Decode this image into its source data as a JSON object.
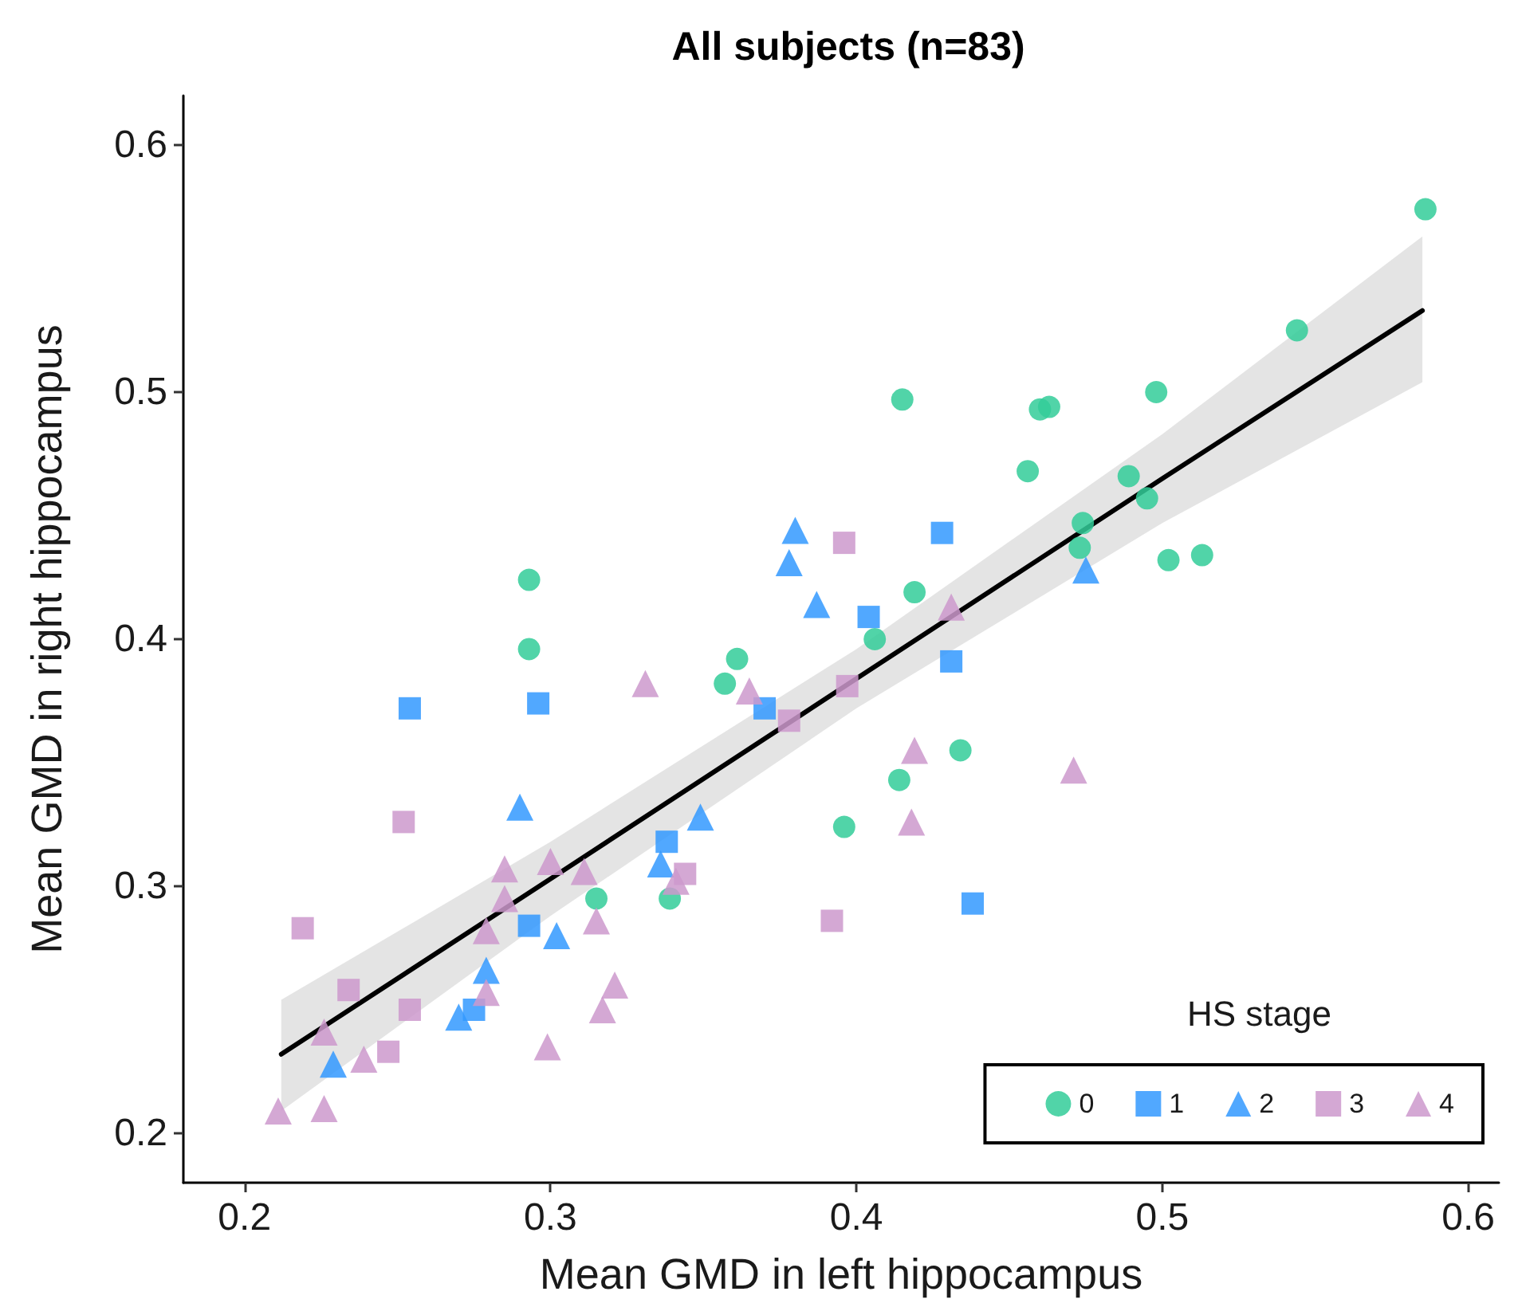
{
  "chart_data": {
    "type": "scatter",
    "title": "All subjects (n=83)",
    "xlabel": "Mean GMD in left hippocampus",
    "ylabel": "Mean GMD in right hippocampus",
    "legend_title": "HS stage",
    "legend": "bottom right",
    "grid": false,
    "xlim": [
      0.18,
      0.61
    ],
    "ylim": [
      0.18,
      0.62
    ],
    "xticks": [
      0.2,
      0.3,
      0.4,
      0.5,
      0.6
    ],
    "yticks": [
      0.2,
      0.3,
      0.4,
      0.5,
      0.6
    ],
    "series": [
      {
        "name": "0",
        "color": "#33cc99",
        "marker": "circle",
        "x": [
          0.293,
          0.293,
          0.315,
          0.339,
          0.357,
          0.361,
          0.406,
          0.419,
          0.396,
          0.414,
          0.434,
          0.415,
          0.46,
          0.463,
          0.498,
          0.544,
          0.586,
          0.456,
          0.489,
          0.495,
          0.474,
          0.473,
          0.502,
          0.513
        ],
        "values": [
          0.424,
          0.396,
          0.295,
          0.295,
          0.382,
          0.392,
          0.4,
          0.419,
          0.324,
          0.343,
          0.355,
          0.497,
          0.493,
          0.494,
          0.5,
          0.525,
          0.574,
          0.468,
          0.466,
          0.457,
          0.447,
          0.437,
          0.432,
          0.434
        ]
      },
      {
        "name": "1",
        "color": "#3399ff",
        "marker": "square",
        "x": [
          0.254,
          0.296,
          0.37,
          0.404,
          0.428,
          0.431,
          0.438,
          0.338,
          0.293,
          0.275
        ],
        "values": [
          0.372,
          0.374,
          0.372,
          0.409,
          0.443,
          0.391,
          0.293,
          0.318,
          0.284,
          0.25
        ]
      },
      {
        "name": "2",
        "color": "#3399ff",
        "marker": "triangle",
        "x": [
          0.38,
          0.378,
          0.387,
          0.475,
          0.349,
          0.336,
          0.29,
          0.302,
          0.279,
          0.27,
          0.229
        ],
        "values": [
          0.444,
          0.431,
          0.414,
          0.428,
          0.328,
          0.309,
          0.332,
          0.28,
          0.266,
          0.247,
          0.228
        ]
      },
      {
        "name": "3",
        "color": "#cc99cc",
        "marker": "square",
        "x": [
          0.396,
          0.397,
          0.378,
          0.392,
          0.344,
          0.252,
          0.219,
          0.234,
          0.254,
          0.247
        ],
        "values": [
          0.439,
          0.381,
          0.367,
          0.286,
          0.305,
          0.326,
          0.283,
          0.258,
          0.25,
          0.233
        ]
      },
      {
        "name": "4",
        "color": "#cc99cc",
        "marker": "triangle",
        "x": [
          0.331,
          0.365,
          0.431,
          0.419,
          0.418,
          0.471,
          0.285,
          0.3,
          0.311,
          0.285,
          0.279,
          0.315,
          0.341,
          0.279,
          0.321,
          0.317,
          0.299,
          0.239,
          0.226,
          0.211,
          0.226
        ],
        "values": [
          0.382,
          0.379,
          0.413,
          0.355,
          0.326,
          0.347,
          0.307,
          0.31,
          0.306,
          0.295,
          0.282,
          0.286,
          0.302,
          0.257,
          0.26,
          0.25,
          0.235,
          0.23,
          0.241,
          0.209,
          0.21
        ]
      },
      {
        "type": "line",
        "color": "#000000",
        "marker": "none",
        "line_style": "solid",
        "x": [
          0.212,
          0.3,
          0.4,
          0.5,
          0.585
        ],
        "values": [
          0.232,
          0.303,
          0.384,
          0.465,
          0.533
        ],
        "lower": [
          0.209,
          0.288,
          0.372,
          0.447,
          0.504
        ],
        "upper": [
          0.254,
          0.318,
          0.396,
          0.483,
          0.563
        ]
      }
    ]
  }
}
